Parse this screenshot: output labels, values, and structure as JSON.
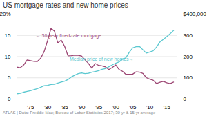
{
  "chart_data": {
    "type": "line",
    "title": "US mortgage rates and new home prices",
    "caption": "ATLAS  |  Data: Freddie Mac; Bureau of Labor Statistics 2017; 30-yr & 15-yr average",
    "x": [
      1971,
      1972,
      1973,
      1974,
      1975,
      1976,
      1977,
      1978,
      1979,
      1980,
      1981,
      1982,
      1983,
      1984,
      1985,
      1986,
      1987,
      1988,
      1989,
      1990,
      1991,
      1992,
      1993,
      1994,
      1995,
      1996,
      1997,
      1998,
      1999,
      2000,
      2001,
      2002,
      2003,
      2004,
      2005,
      2006,
      2007,
      2008,
      2009,
      2010,
      2011,
      2012,
      2013,
      2014,
      2015,
      2016,
      2017
    ],
    "xlim": [
      1971,
      2018
    ],
    "xticks": [
      {
        "value": 1975,
        "label": "'75"
      },
      {
        "value": 1980,
        "label": "'80"
      },
      {
        "value": 1985,
        "label": "'85"
      },
      {
        "value": 1990,
        "label": "'90"
      },
      {
        "value": 1995,
        "label": "'95"
      },
      {
        "value": 2000,
        "label": "'00"
      },
      {
        "value": 2005,
        "label": "'05"
      },
      {
        "value": 2010,
        "label": "'10"
      },
      {
        "value": 2015,
        "label": "'15"
      }
    ],
    "ylim": [
      0,
      20
    ],
    "yticks": [
      0,
      5,
      10,
      15,
      {
        "value": 20,
        "label": "20%"
      }
    ],
    "y2lim": [
      0,
      400
    ],
    "y2ticks": [
      0,
      100,
      200,
      300,
      {
        "value": 400,
        "label": "$400,000"
      }
    ],
    "grid": true,
    "series": [
      {
        "color": "#9B4472",
        "values": [
          7.54,
          7.38,
          8.04,
          9.19,
          9.05,
          8.87,
          8.85,
          9.64,
          11.2,
          13.74,
          16.63,
          16.04,
          13.24,
          13.88,
          12.43,
          10.19,
          10.21,
          10.34,
          10.32,
          10.13,
          9.25,
          8.39,
          7.31,
          8.38,
          7.93,
          7.81,
          7.6,
          6.94,
          7.44,
          8.05,
          6.97,
          6.54,
          5.83,
          5.84,
          5.87,
          6.41,
          6.34,
          6.03,
          5.04,
          4.69,
          4.45,
          3.66,
          3.98,
          4.17,
          3.85,
          3.65,
          3.99
        ]
      },
      {
        "color": "#5BC8D0",
        "axis": "y2",
        "values": [
          25.2,
          27.6,
          32.5,
          35.9,
          39.3,
          44.2,
          48.8,
          55.7,
          62.9,
          64.6,
          68.9,
          69.3,
          75.3,
          79.9,
          84.3,
          92.0,
          104.5,
          112.5,
          120.0,
          122.9,
          120.0,
          121.5,
          126.5,
          130.0,
          133.9,
          140.0,
          143.6,
          152.5,
          161.0,
          169.0,
          175.2,
          187.6,
          195.0,
          221.0,
          240.9,
          246.5,
          247.9,
          232.1,
          216.7,
          221.8,
          227.2,
          245.2,
          268.9,
          281.6,
          294.2,
          307.8,
          323.1
        ]
      }
    ],
    "annotations": [
      {
        "text": "← 30-year fixed-rate mortgage",
        "x": 1976.5,
        "y": 14.5,
        "color": "#9B4472"
      },
      {
        "text": "Median price of new homes→",
        "x": 1986.5,
        "y": 9.0,
        "color": "#5BC8D0"
      }
    ]
  }
}
